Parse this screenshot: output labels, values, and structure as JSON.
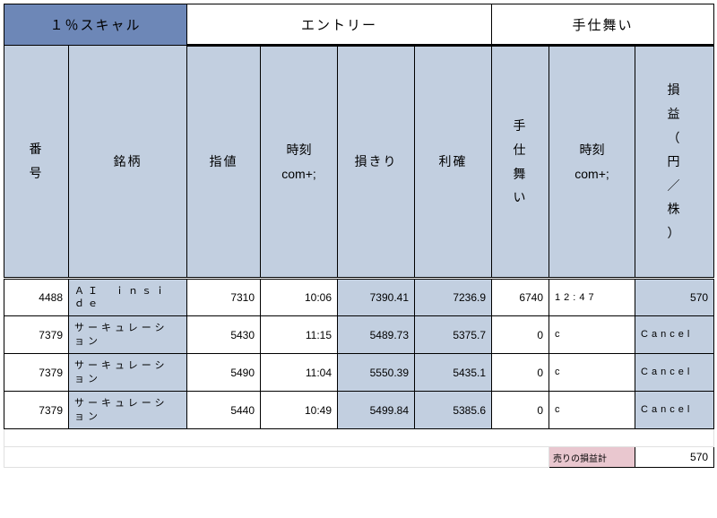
{
  "header": {
    "corner": "１％スキャル",
    "entry": "エントリー",
    "exit": "手仕舞い"
  },
  "cols": {
    "num": "番号",
    "name": "銘柄",
    "limit": "指値",
    "time1": "時刻com+;",
    "loss": "損きり",
    "profit": "利確",
    "closev": "手仕舞い",
    "time2": "時刻com+;",
    "pl": "損益（円／株）"
  },
  "rows": [
    {
      "num": "4488",
      "name": "ＡＩ　ｉｎｓｉｄｅ",
      "limit": "7310",
      "time1": "10:06",
      "loss": "7390.41",
      "profit": "7236.9",
      "closev": "6740",
      "time2": "12:47",
      "pl": "570"
    },
    {
      "num": "7379",
      "name": "サーキュレーション",
      "limit": "5430",
      "time1": "11:15",
      "loss": "5489.73",
      "profit": "5375.7",
      "closev": "0",
      "time2": "c",
      "pl": "Cancel"
    },
    {
      "num": "7379",
      "name": "サーキュレーション",
      "limit": "5490",
      "time1": "11:04",
      "loss": "5550.39",
      "profit": "5435.1",
      "closev": "0",
      "time2": "c",
      "pl": "Cancel"
    },
    {
      "num": "7379",
      "name": "サーキュレーション",
      "limit": "5440",
      "time1": "10:49",
      "loss": "5499.84",
      "profit": "5385.6",
      "closev": "0",
      "time2": "c",
      "pl": "Cancel"
    }
  ],
  "footer": {
    "label": "売りの損益計",
    "value": "570"
  },
  "widths": {
    "c0": 72,
    "c1": 132,
    "c2": 82,
    "c3": 86,
    "c4": 86,
    "c5": 86,
    "c6": 64,
    "c7": 96,
    "c8": 88
  }
}
